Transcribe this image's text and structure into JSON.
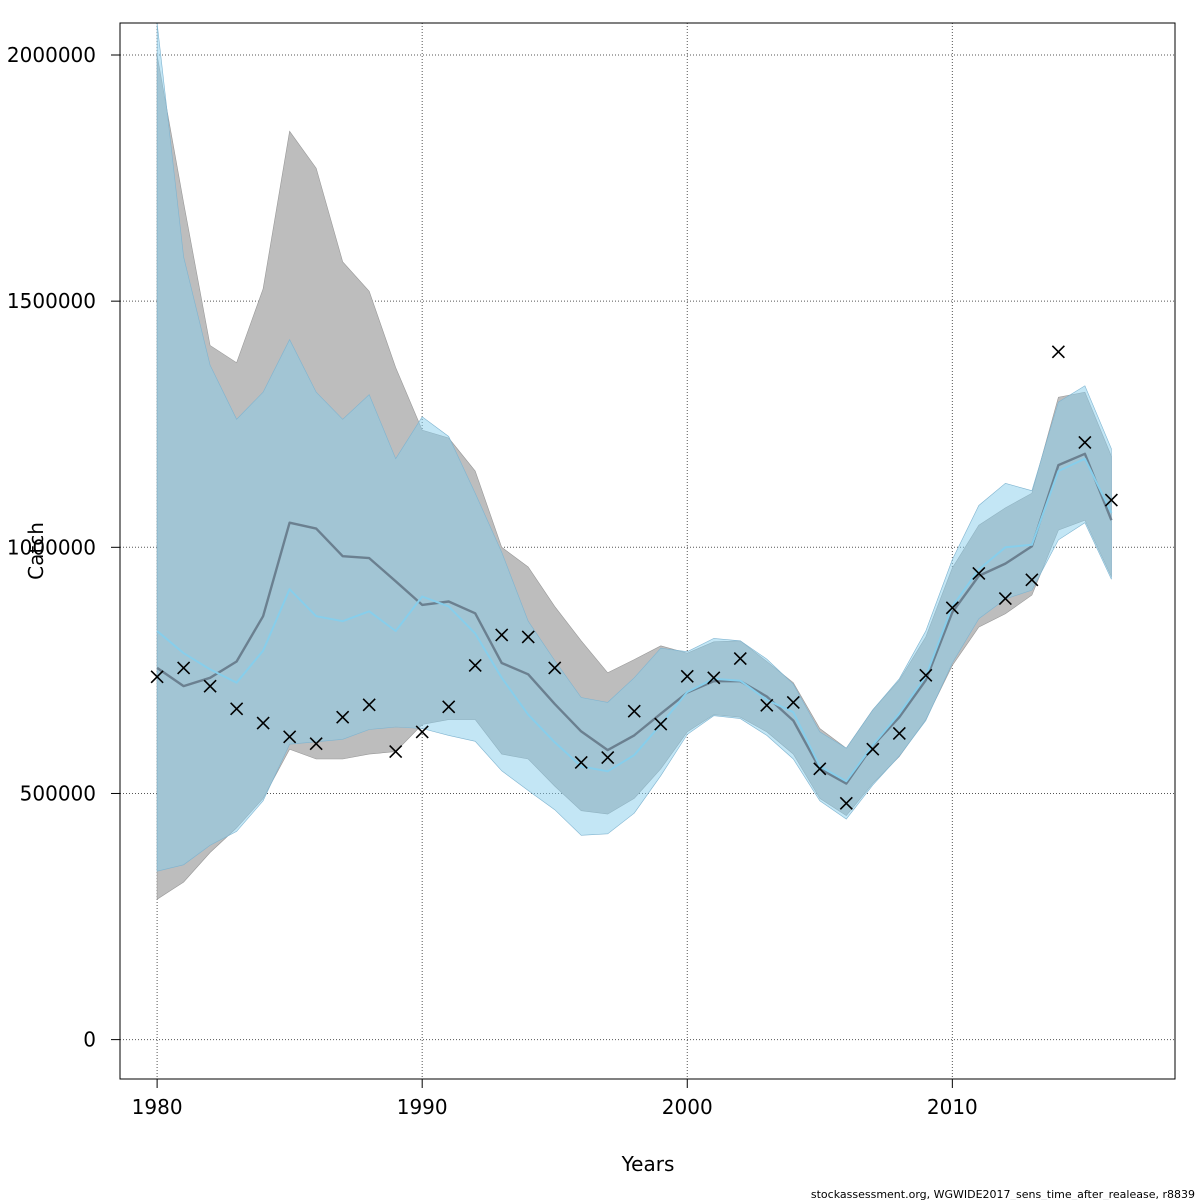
{
  "chart_data": {
    "type": "line",
    "title": "",
    "xlabel": "Years",
    "ylabel": "Catch",
    "xlim": [
      1978.6,
      2018.4
    ],
    "ylim": [
      -80000,
      2065000
    ],
    "x_ticks": [
      1980,
      1990,
      2000,
      2010
    ],
    "y_ticks": [
      0,
      500000,
      1000000,
      1500000,
      2000000
    ],
    "grid": true,
    "years": [
      1980,
      1981,
      1982,
      1983,
      1984,
      1985,
      1986,
      1987,
      1988,
      1989,
      1990,
      1991,
      1992,
      1993,
      1994,
      1995,
      1996,
      1997,
      1998,
      1999,
      2000,
      2001,
      2002,
      2003,
      2004,
      2005,
      2006,
      2007,
      2008,
      2009,
      2010,
      2011,
      2012,
      2013,
      2014,
      2015,
      2016
    ],
    "series": [
      {
        "color": "#6b8090",
        "band_color": "#bdbdbd",
        "estimate": [
          755000,
          718000,
          735000,
          768000,
          860000,
          1050000,
          1038000,
          982000,
          978000,
          931000,
          883000,
          890000,
          866000,
          765000,
          742000,
          682000,
          626000,
          588000,
          618000,
          662000,
          705000,
          728000,
          728000,
          697000,
          648000,
          550000,
          520000,
          597000,
          655000,
          730000,
          868000,
          942000,
          967000,
          1002000,
          1167000,
          1190000,
          1055000
        ],
        "upper": [
          2000000,
          1700000,
          1410000,
          1375000,
          1525000,
          1845000,
          1770000,
          1580000,
          1520000,
          1365000,
          1238000,
          1222000,
          1155000,
          1000000,
          960000,
          880000,
          810000,
          745000,
          772000,
          800000,
          785000,
          808000,
          810000,
          768000,
          725000,
          632000,
          592000,
          670000,
          730000,
          818000,
          958000,
          1045000,
          1080000,
          1110000,
          1305000,
          1315000,
          1185000
        ],
        "lower": [
          285000,
          320000,
          380000,
          430000,
          490000,
          590000,
          570000,
          570000,
          580000,
          585000,
          640000,
          650000,
          650000,
          580000,
          570000,
          515000,
          465000,
          458000,
          490000,
          550000,
          625000,
          660000,
          655000,
          625000,
          580000,
          490000,
          455000,
          520000,
          575000,
          650000,
          760000,
          838000,
          865000,
          903000,
          1035000,
          1055000,
          940000
        ]
      },
      {
        "color": "#87ceeb",
        "band_color": "#87ceeb",
        "estimate": [
          830000,
          785000,
          752000,
          725000,
          790000,
          915000,
          860000,
          850000,
          870000,
          830000,
          900000,
          880000,
          825000,
          735000,
          660000,
          604000,
          555000,
          545000,
          578000,
          640000,
          706000,
          733000,
          729000,
          690000,
          665000,
          555000,
          525000,
          598000,
          662000,
          738000,
          880000,
          955000,
          1000000,
          1005000,
          1155000,
          1180000,
          1070000
        ],
        "upper": [
          2065000,
          1590000,
          1370000,
          1260000,
          1315000,
          1422000,
          1315000,
          1260000,
          1310000,
          1180000,
          1265000,
          1225000,
          1110000,
          990000,
          850000,
          770000,
          695000,
          685000,
          735000,
          795000,
          788000,
          815000,
          810000,
          773000,
          722000,
          625000,
          592000,
          670000,
          733000,
          830000,
          975000,
          1085000,
          1130000,
          1115000,
          1295000,
          1328000,
          1200000
        ],
        "lower": [
          342000,
          355000,
          395000,
          423000,
          485000,
          600000,
          605000,
          610000,
          630000,
          635000,
          632000,
          618000,
          606000,
          546000,
          506000,
          467000,
          415000,
          418000,
          460000,
          536000,
          620000,
          658000,
          652000,
          618000,
          570000,
          485000,
          448000,
          517000,
          576000,
          648000,
          765000,
          855000,
          895000,
          913000,
          1015000,
          1050000,
          935000
        ]
      }
    ],
    "observed_catch": {
      "marker": "cross",
      "years": [
        1980,
        1981,
        1982,
        1983,
        1984,
        1985,
        1986,
        1987,
        1988,
        1989,
        1990,
        1991,
        1992,
        1993,
        1994,
        1995,
        1996,
        1997,
        1998,
        1999,
        2000,
        2001,
        2002,
        2003,
        2004,
        2005,
        2006,
        2007,
        2008,
        2009,
        2010,
        2011,
        2012,
        2013,
        2014,
        2015,
        2016
      ],
      "values": [
        737000,
        755000,
        718000,
        672000,
        643000,
        615000,
        601000,
        655000,
        680000,
        585000,
        625000,
        676000,
        760000,
        822000,
        818000,
        755000,
        563000,
        573000,
        667000,
        641000,
        738000,
        735000,
        774000,
        679000,
        685000,
        550000,
        480000,
        590000,
        622000,
        740000,
        877000,
        947000,
        896000,
        934000,
        1397000,
        1213000,
        1096000
      ]
    }
  },
  "footer": {
    "credit": "stockassessment.org, WGWIDE2017_sens_time_after_realease, r8839"
  }
}
